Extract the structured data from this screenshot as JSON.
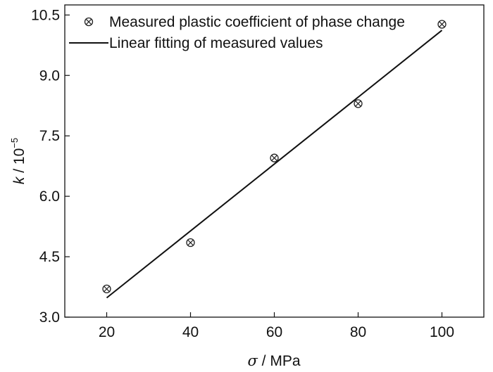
{
  "chart_data": {
    "type": "scatter",
    "title": "",
    "xlabel_symbol": "σ",
    "xlabel_unit": " / MPa",
    "ylabel_symbol": "k",
    "ylabel_unit": " / 10",
    "ylabel_exp": "−5",
    "xlim": [
      10,
      110
    ],
    "ylim": [
      3.0,
      10.75
    ],
    "xticks": [
      20,
      40,
      60,
      80,
      100
    ],
    "yticks": [
      3.0,
      4.5,
      6.0,
      7.5,
      9.0,
      10.5
    ],
    "xtick_labels": [
      "20",
      "40",
      "60",
      "80",
      "100"
    ],
    "ytick_labels": [
      "3.0",
      "4.5",
      "6.0",
      "7.5",
      "9.0",
      "10.5"
    ],
    "grid": false,
    "legend_position": "top",
    "series": [
      {
        "name": "Measured plastic coefficient of phase change",
        "kind": "scatter",
        "marker": "circle-x",
        "x": [
          20,
          40,
          60,
          80,
          100
        ],
        "y": [
          3.7,
          4.85,
          6.95,
          8.3,
          10.27
        ]
      },
      {
        "name": "Linear fitting of measured values",
        "kind": "line",
        "x": [
          20,
          100
        ],
        "y": [
          3.48,
          10.12
        ]
      }
    ],
    "colors": {
      "axis": "#111111",
      "marker": "#222222",
      "line": "#111111"
    }
  }
}
